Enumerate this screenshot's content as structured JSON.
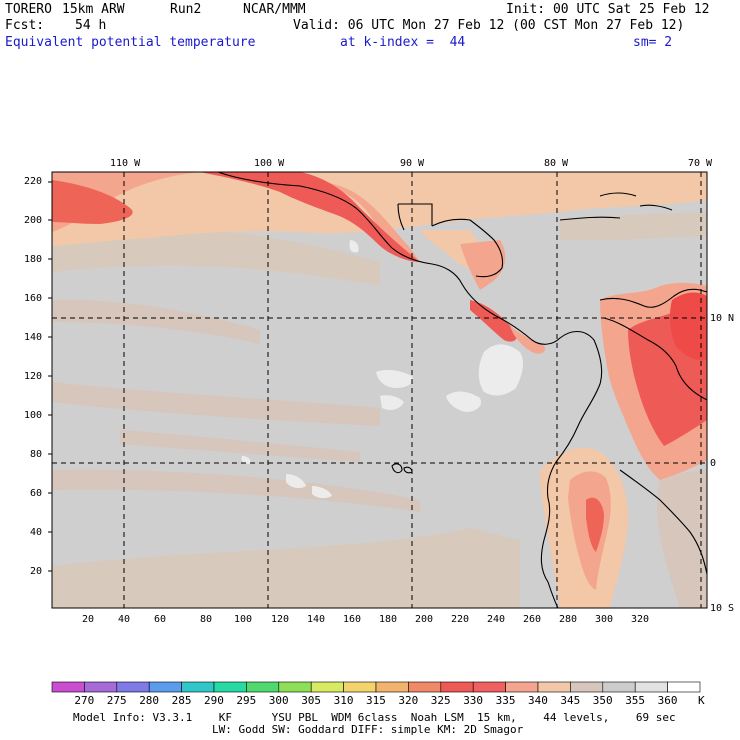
{
  "header": {
    "model": "TORERO",
    "resolution": "15km ARW",
    "run": "Run2",
    "org": "NCAR/MMM",
    "init": "Init: 00 UTC Sat 25 Feb 12",
    "fcst_label": "Fcst:",
    "fcst_value": "54 h",
    "valid": "Valid: 06 UTC Mon 27 Feb 12 (00 CST Mon 27 Feb 12)",
    "field": "Equivalent potential temperature",
    "level": "at k-index =  44",
    "smooth": "sm= 2"
  },
  "map": {
    "lon_labels": [
      "110 W",
      "100 W",
      "90 W",
      "80 W",
      "70 W"
    ],
    "lat_labels": [
      "10 N",
      "0",
      "10 S"
    ],
    "y_ticks": [
      "220",
      "200",
      "180",
      "160",
      "140",
      "120",
      "100",
      "80",
      "60",
      "40",
      "20"
    ],
    "x_ticks": [
      "20",
      "40",
      "60",
      "80",
      "100",
      "120",
      "140",
      "160",
      "180",
      "200",
      "220",
      "240",
      "260",
      "280",
      "300",
      "320"
    ]
  },
  "colorbar": {
    "levels": [
      "270",
      "275",
      "280",
      "285",
      "290",
      "295",
      "300",
      "305",
      "310",
      "315",
      "320",
      "325",
      "330",
      "335",
      "340",
      "345",
      "350",
      "355",
      "360"
    ],
    "unit": "K",
    "colors": [
      "#c94ed0",
      "#a66bd6",
      "#7f7ae6",
      "#5c9cec",
      "#31c7c9",
      "#27d9a3",
      "#4fd96f",
      "#8fde58",
      "#d7ea62",
      "#f3d36b",
      "#f2b36f",
      "#f08a66",
      "#ee5a55",
      "#f06060",
      "#f4a58e",
      "#f2c8a8",
      "#d6c6bc",
      "#cccccc",
      "#e2e2e2",
      "#ffffff"
    ]
  },
  "footer": {
    "line1": "Model Info: V3.3.1    KF      YSU PBL  WDM 6class  Noah LSM  15 km,    44 levels,    69 sec",
    "line2": "LW: Godd SW: Goddard DIFF: simple KM: 2D Smagor"
  }
}
